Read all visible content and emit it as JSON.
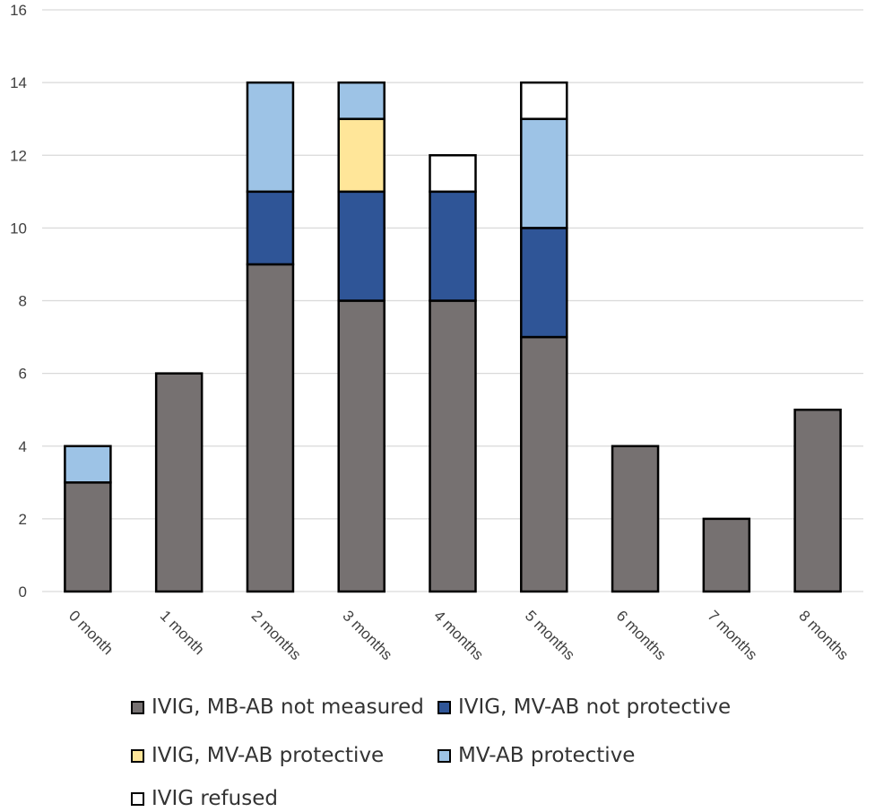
{
  "chart_data": {
    "type": "bar",
    "stacked": true,
    "title": "",
    "xlabel": "",
    "ylabel": "",
    "ylim": [
      0,
      16
    ],
    "yticks": [
      0,
      2,
      4,
      6,
      8,
      10,
      12,
      14,
      16
    ],
    "grid": true,
    "legend_position": "bottom",
    "categories": [
      "0 month",
      "1 month",
      "2 months",
      "3 months",
      "4 months",
      "5 months",
      "6 months",
      "7 months",
      "8 months"
    ],
    "series": [
      {
        "name": "IVIG, MB-AB not measured",
        "color": "#767171",
        "values": [
          3,
          6,
          9,
          8,
          8,
          7,
          4,
          2,
          5
        ]
      },
      {
        "name": "IVIG, MV-AB not protective",
        "color": "#2F5597",
        "values": [
          0,
          0,
          2,
          3,
          3,
          3,
          0,
          0,
          0
        ]
      },
      {
        "name": "IVIG, MV-AB protective",
        "color": "#FFE699",
        "values": [
          0,
          0,
          0,
          2,
          0,
          0,
          0,
          0,
          0
        ]
      },
      {
        "name": "MV-AB protective",
        "color": "#9DC3E6",
        "values": [
          1,
          0,
          3,
          1,
          0,
          3,
          0,
          0,
          0
        ]
      },
      {
        "name": "IVIG refused",
        "color": "#FFFFFF",
        "values": [
          0,
          0,
          0,
          0,
          1,
          1,
          0,
          0,
          0
        ]
      }
    ]
  }
}
